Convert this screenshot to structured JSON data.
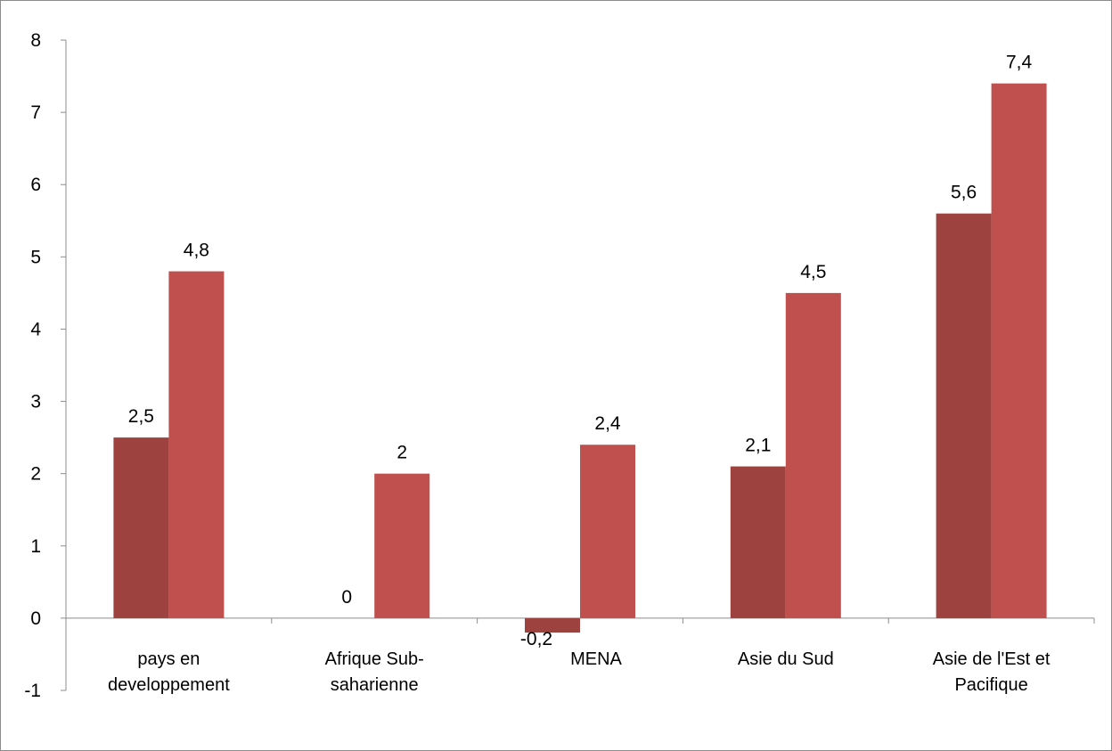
{
  "chart_data": {
    "type": "bar",
    "categories": [
      [
        "pays en",
        "developpement"
      ],
      [
        "Afrique Sub-",
        "saharienne"
      ],
      [
        "MENA"
      ],
      [
        "Asie du Sud"
      ],
      [
        "Asie de l'Est et",
        "Pacifique"
      ]
    ],
    "series": [
      {
        "values": [
          2.5,
          0,
          -0.2,
          2.1,
          5.6
        ],
        "labels": [
          "2,5",
          "0",
          "-0,2",
          "2,1",
          "5,6"
        ],
        "color": "#9e4240"
      },
      {
        "values": [
          4.8,
          2,
          2.4,
          4.5,
          7.4
        ],
        "labels": [
          "4,8",
          "2",
          "2,4",
          "4,5",
          "7,4"
        ],
        "color": "#c0504d"
      }
    ],
    "yticks": [
      "-1",
      "0",
      "1",
      "2",
      "3",
      "4",
      "5",
      "6",
      "7",
      "8"
    ],
    "ylim": [
      -1,
      8
    ],
    "grid": false,
    "legend": "none",
    "axis_color": "#8c8c8c"
  }
}
